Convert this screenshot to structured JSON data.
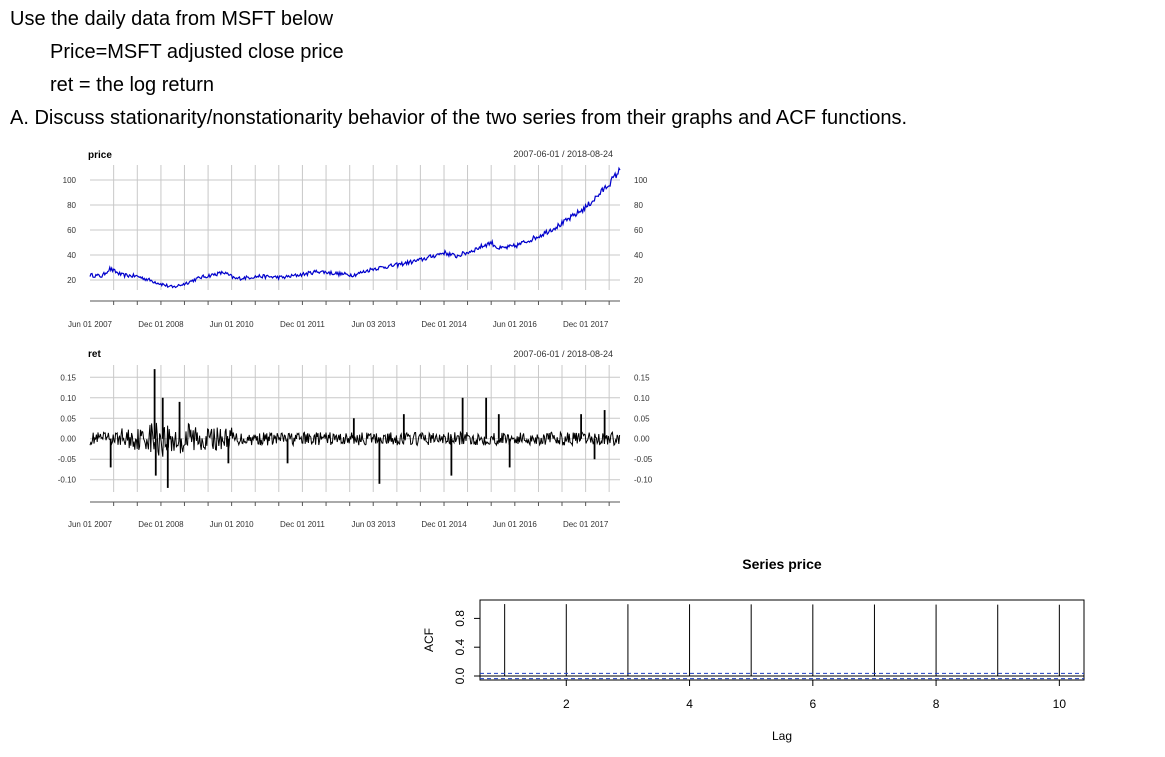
{
  "question": {
    "line1": "Use the daily data from MSFT below",
    "line2": "Price=MSFT adjusted close price",
    "line3": "ret = the log return",
    "line4": "A. Discuss stationarity/nonstationarity behavior of the two series from their graphs and ACF functions."
  },
  "chart_data": [
    {
      "type": "line",
      "title": "price",
      "date_range_label": "2007-06-01 / 2018-08-24",
      "series_color": "#0000cc",
      "ylim": [
        12,
        112
      ],
      "y_ticks": [
        20,
        40,
        60,
        80,
        100
      ],
      "y_tick_labels": [
        "20",
        "40",
        "60",
        "80",
        "100"
      ],
      "x_tick_labels": [
        "Jun 01 2007",
        "Dec 01 2008",
        "Jun 01 2010",
        "Dec 01 2011",
        "Jun 03 2013",
        "Dec 01 2014",
        "Jun 01 2016",
        "Dec 01 2017"
      ],
      "grid": true,
      "x": [
        "2007-06-01",
        "2007-09-01",
        "2007-11-01",
        "2008-02-01",
        "2008-06-01",
        "2008-10-01",
        "2009-03-01",
        "2009-06-01",
        "2009-10-01",
        "2010-04-01",
        "2010-07-01",
        "2011-01-01",
        "2011-07-01",
        "2012-01-01",
        "2012-04-01",
        "2012-09-01",
        "2013-01-01",
        "2013-06-01",
        "2013-12-01",
        "2014-06-01",
        "2014-12-01",
        "2015-03-01",
        "2015-06-01",
        "2015-12-01",
        "2016-02-01",
        "2016-06-01",
        "2016-12-01",
        "2017-06-01",
        "2017-12-01",
        "2018-03-01",
        "2018-06-01",
        "2018-08-24"
      ],
      "values": [
        24,
        23,
        29,
        24,
        23,
        19,
        14,
        17,
        22,
        26,
        21,
        23,
        22,
        25,
        27,
        25,
        24,
        29,
        32,
        36,
        42,
        39,
        42,
        50,
        45,
        47,
        55,
        65,
        78,
        87,
        97,
        108
      ]
    },
    {
      "type": "line",
      "title": "ret",
      "date_range_label": "2007-06-01 / 2018-08-24",
      "series_color": "#000000",
      "ylim": [
        -0.13,
        0.18
      ],
      "y_ticks": [
        -0.1,
        -0.05,
        0.0,
        0.05,
        0.1,
        0.15
      ],
      "y_tick_labels": [
        "-0.10",
        "-0.05",
        "0.00",
        "0.05",
        "0.10",
        "0.15"
      ],
      "x_tick_labels": [
        "Jun 01 2007",
        "Dec 01 2008",
        "Jun 01 2010",
        "Dec 01 2011",
        "Jun 03 2013",
        "Dec 01 2014",
        "Jun 01 2016",
        "Dec 01 2017"
      ],
      "grid": true,
      "spikes": [
        {
          "x": "2007-11-08",
          "y": -0.07
        },
        {
          "x": "2008-10-13",
          "y": 0.17
        },
        {
          "x": "2008-10-22",
          "y": -0.09
        },
        {
          "x": "2008-12-15",
          "y": 0.1
        },
        {
          "x": "2009-01-23",
          "y": -0.12
        },
        {
          "x": "2009-04-24",
          "y": 0.09
        },
        {
          "x": "2010-05-07",
          "y": -0.06
        },
        {
          "x": "2011-08-08",
          "y": -0.06
        },
        {
          "x": "2013-01-02",
          "y": 0.05
        },
        {
          "x": "2013-07-19",
          "y": -0.11
        },
        {
          "x": "2014-01-24",
          "y": 0.06
        },
        {
          "x": "2015-04-24",
          "y": 0.1
        },
        {
          "x": "2015-01-27",
          "y": -0.09
        },
        {
          "x": "2015-10-23",
          "y": 0.1
        },
        {
          "x": "2016-01-29",
          "y": 0.06
        },
        {
          "x": "2016-04-22",
          "y": -0.07
        },
        {
          "x": "2017-10-27",
          "y": 0.06
        },
        {
          "x": "2018-02-08",
          "y": -0.05
        },
        {
          "x": "2018-04-27",
          "y": 0.07
        }
      ]
    },
    {
      "type": "bar",
      "title": "Series  price",
      "xlabel": "Lag",
      "ylabel": "ACF",
      "x_ticks": [
        2,
        4,
        6,
        8,
        10
      ],
      "x_tick_labels": [
        "2",
        "4",
        "6",
        "8",
        "10"
      ],
      "y_ticks": [
        0.0,
        0.4,
        0.8
      ],
      "y_tick_labels": [
        "0.0",
        "0.4",
        "0.8"
      ],
      "xlim": [
        0.6,
        10.4
      ],
      "ylim": [
        0.0,
        1.0
      ],
      "lags": [
        1,
        2,
        3,
        4,
        5,
        6,
        7,
        8,
        9,
        10
      ],
      "values": [
        0.999,
        0.998,
        0.997,
        0.996,
        0.995,
        0.994,
        0.993,
        0.992,
        0.991,
        0.99
      ],
      "confidence_bounds": [
        0.037,
        -0.037
      ]
    }
  ]
}
